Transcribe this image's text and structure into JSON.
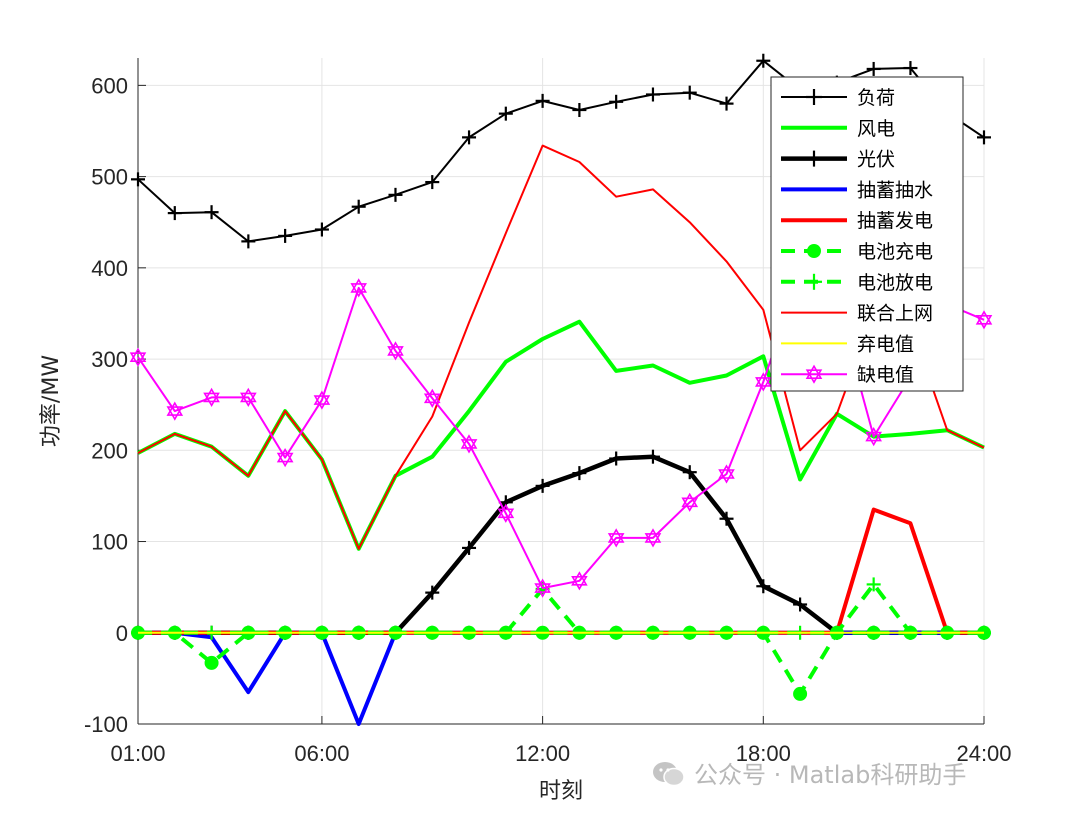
{
  "chart_data": {
    "type": "line",
    "title": "",
    "xlabel": "时刻",
    "ylabel": "功率/MW",
    "xlim": [
      1,
      24
    ],
    "ylim": [
      -100,
      630
    ],
    "xticks": [
      {
        "value": 1,
        "label": "01:00"
      },
      {
        "value": 6,
        "label": "06:00"
      },
      {
        "value": 12,
        "label": "12:00"
      },
      {
        "value": 18,
        "label": "18:00"
      },
      {
        "value": 24,
        "label": "24:00"
      }
    ],
    "yticks": [
      -100,
      0,
      100,
      200,
      300,
      400,
      500,
      600
    ],
    "grid": true,
    "legend_position": "top-right",
    "x": [
      1,
      2,
      3,
      4,
      5,
      6,
      7,
      8,
      9,
      10,
      11,
      12,
      13,
      14,
      15,
      16,
      17,
      18,
      19,
      20,
      21,
      22,
      23,
      24
    ],
    "series": [
      {
        "name": "负荷",
        "color": "#000000",
        "width": 2,
        "marker": "plus",
        "dash": "solid",
        "values": [
          497,
          460,
          461,
          429,
          435,
          442,
          467,
          480,
          494,
          543,
          569,
          583,
          573,
          582,
          590,
          592,
          580,
          627,
          595,
          603,
          618,
          619,
          570,
          543
        ]
      },
      {
        "name": "风电",
        "color": "#00ff00",
        "width": 4,
        "marker": "none",
        "dash": "solid",
        "values": [
          197,
          218,
          204,
          172,
          243,
          190,
          92,
          172,
          193,
          243,
          297,
          322,
          341,
          287,
          293,
          274,
          282,
          303,
          168,
          240,
          215,
          218,
          222,
          203
        ]
      },
      {
        "name": "光伏",
        "color": "#000000",
        "width": 4.5,
        "marker": "plus",
        "dash": "solid",
        "values": [
          0,
          0,
          0,
          0,
          0,
          0,
          0,
          0,
          44,
          93,
          143,
          161,
          175,
          191,
          193,
          176,
          125,
          51,
          31,
          0,
          0,
          0,
          0,
          0
        ]
      },
      {
        "name": "抽蓄抽水",
        "color": "#0000ff",
        "width": 4,
        "marker": "none",
        "dash": "solid",
        "values": [
          0,
          0,
          -5,
          -65,
          0,
          0,
          -100,
          0,
          0,
          0,
          0,
          0,
          0,
          0,
          0,
          0,
          0,
          0,
          0,
          0,
          0,
          0,
          0,
          0
        ]
      },
      {
        "name": "抽蓄发电",
        "color": "#ff0000",
        "width": 4,
        "marker": "none",
        "dash": "solid",
        "values": [
          0,
          0,
          0,
          0,
          0,
          0,
          0,
          0,
          0,
          0,
          0,
          0,
          0,
          0,
          0,
          0,
          0,
          0,
          0,
          0,
          135,
          120,
          0,
          0
        ]
      },
      {
        "name": "电池充电",
        "color": "#00ff00",
        "width": 4,
        "marker": "dot",
        "dash": "dashed",
        "values": [
          0,
          0,
          -33,
          0,
          0,
          0,
          0,
          0,
          0,
          0,
          0,
          0,
          0,
          0,
          0,
          0,
          0,
          0,
          -67,
          0,
          0,
          0,
          0,
          0
        ]
      },
      {
        "name": "电池放电",
        "color": "#00ff00",
        "width": 4,
        "marker": "plus",
        "dash": "dashed",
        "values": [
          0,
          0,
          0,
          0,
          0,
          0,
          0,
          0,
          0,
          0,
          0,
          48,
          0,
          0,
          0,
          0,
          0,
          0,
          0,
          0,
          53,
          0,
          0,
          0
        ]
      },
      {
        "name": "联合上网",
        "color": "#ff0000",
        "width": 2,
        "marker": "none",
        "dash": "solid",
        "values": [
          197,
          218,
          204,
          172,
          243,
          190,
          92,
          172,
          237,
          340,
          438,
          534,
          516,
          478,
          486,
          450,
          407,
          354,
          200,
          240,
          350,
          338,
          222,
          203
        ]
      },
      {
        "name": "弃电值",
        "color": "#ffff00",
        "width": 2,
        "marker": "none",
        "dash": "solid",
        "values": [
          0,
          0,
          0,
          0,
          0,
          0,
          0,
          0,
          0,
          0,
          0,
          0,
          0,
          0,
          0,
          0,
          0,
          0,
          0,
          0,
          0,
          0,
          0,
          0
        ]
      },
      {
        "name": "缺电值",
        "color": "#ff00ff",
        "width": 2,
        "marker": "hexagram",
        "dash": "solid",
        "values": [
          302,
          243,
          258,
          258,
          192,
          255,
          378,
          309,
          257,
          207,
          131,
          49,
          57,
          104,
          104,
          143,
          174,
          275,
          395,
          363,
          215,
          280,
          360,
          343
        ]
      }
    ]
  },
  "watermark": {
    "text": "公众号 · Matlab科研助手",
    "icon": "wechat-icon"
  }
}
